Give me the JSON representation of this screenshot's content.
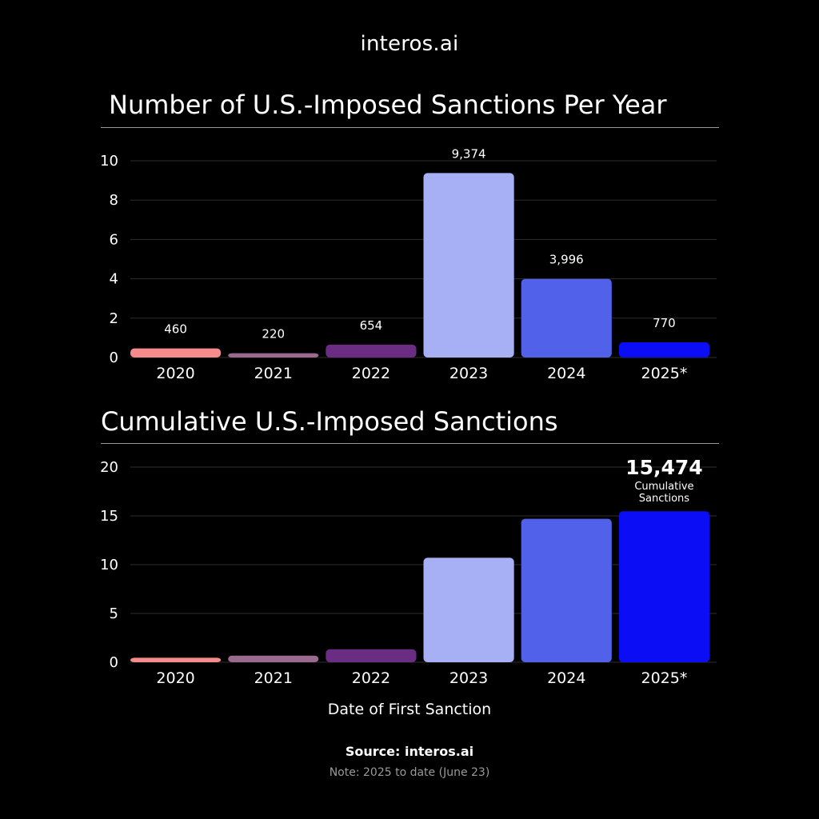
{
  "header": {
    "logo_text": "interos.ai"
  },
  "chart_data": [
    {
      "type": "bar",
      "title": "Number of U.S.-Imposed Sanctions Per Year",
      "categories": [
        "2020",
        "2021",
        "2022",
        "2023",
        "2024",
        "2025*"
      ],
      "values": [
        460,
        220,
        654,
        9374,
        3996,
        770
      ],
      "value_labels": [
        "460",
        "220",
        "654",
        "9,374",
        "3,996",
        "770"
      ],
      "yticks": [
        "0",
        "2",
        "4",
        "6",
        "8",
        "10"
      ],
      "ylim": [
        0,
        10
      ],
      "value_scale": 1000,
      "colors": [
        "#f58b8b",
        "#9a6a8e",
        "#6b2d83",
        "#a8b0f5",
        "#5261ea",
        "#0b0ef5"
      ],
      "grid": true
    },
    {
      "type": "bar",
      "title": "Cumulative U.S.-Imposed Sanctions",
      "categories": [
        "2020",
        "2021",
        "2022",
        "2023",
        "2024",
        "2025*"
      ],
      "values": [
        460,
        680,
        1334,
        10708,
        14704,
        15474
      ],
      "yticks": [
        "0",
        "5",
        "10",
        "15",
        "20"
      ],
      "ylim": [
        0,
        20
      ],
      "value_scale": 1000,
      "colors": [
        "#f58b8b",
        "#9a6a8e",
        "#6b2d83",
        "#a8b0f5",
        "#5261ea",
        "#0b0ef5"
      ],
      "grid": true,
      "xlabel": "Date of First Sanction",
      "annotation": {
        "value": "15,474",
        "label_line1": "Cumulative",
        "label_line2": "Sanctions"
      }
    }
  ],
  "footer": {
    "source": "Source: interos.ai",
    "note": "Note: 2025 to date (June 23)"
  }
}
